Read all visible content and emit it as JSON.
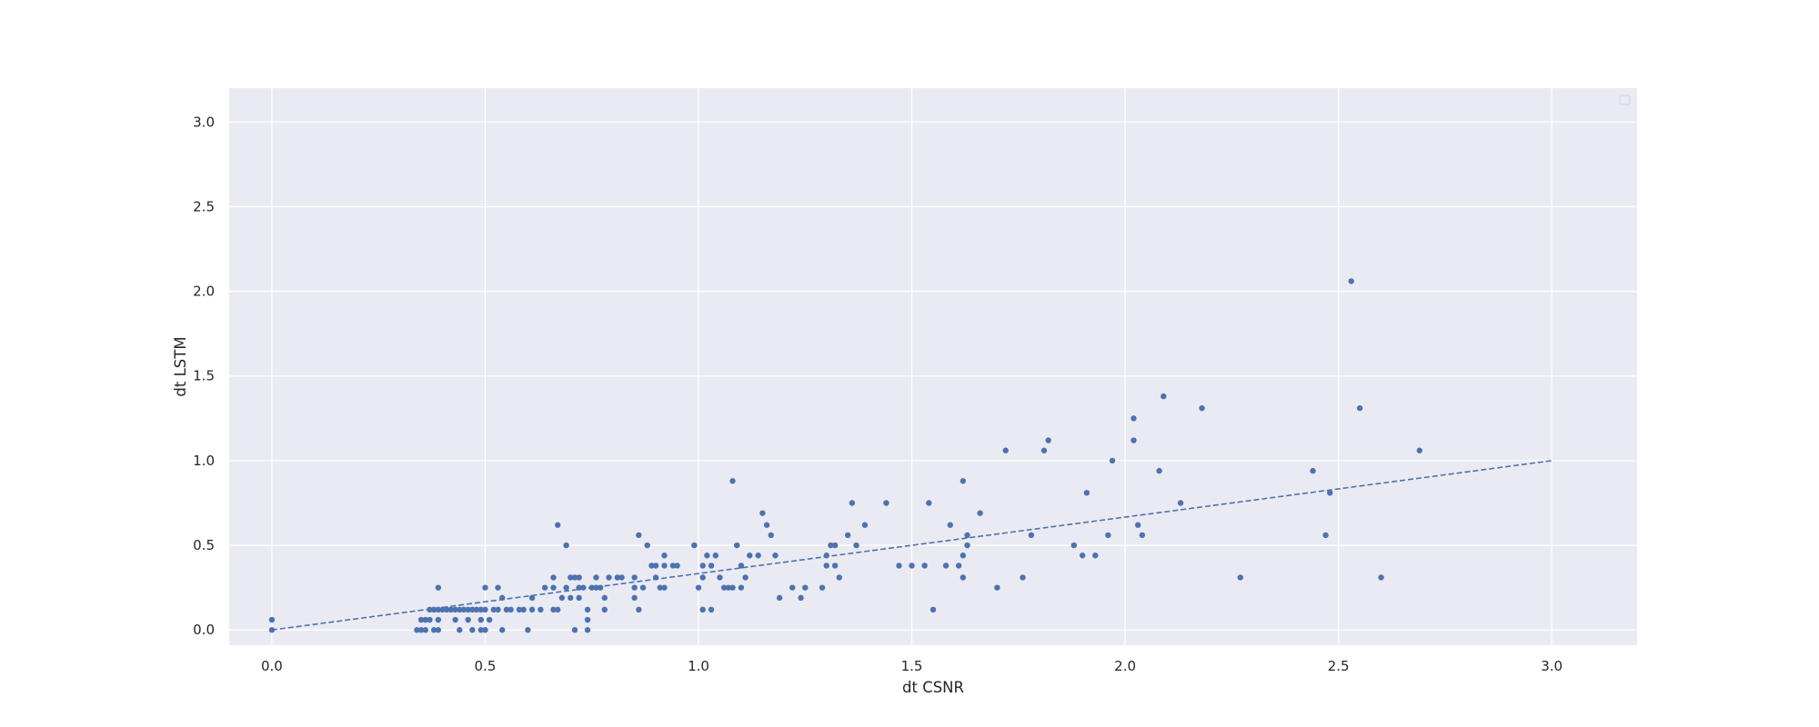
{
  "chart_data": {
    "type": "scatter",
    "title": "",
    "xlabel": "dt CSNR",
    "ylabel": "dt LSTM",
    "xlim": [
      -0.1,
      3.2
    ],
    "ylim": [
      -0.09,
      3.2
    ],
    "xticks": [
      0.0,
      0.5,
      1.0,
      1.5,
      2.0,
      2.5,
      3.0
    ],
    "yticks": [
      0.0,
      0.5,
      1.0,
      1.5,
      2.0,
      2.5,
      3.0
    ],
    "xtick_labels": [
      "0.0",
      "0.5",
      "1.0",
      "1.5",
      "2.0",
      "2.5",
      "3.0"
    ],
    "ytick_labels": [
      "0.0",
      "0.5",
      "1.0",
      "1.5",
      "2.0",
      "2.5",
      "3.0"
    ],
    "grid": true,
    "legend": "top-right (empty)",
    "colors": {
      "points": "#4c72b0",
      "line": "#4c72b0",
      "plot_bg": "#eaeaf2",
      "grid": "#ffffff",
      "text": "#262626"
    },
    "reference_line": {
      "x": [
        0.0,
        3.0
      ],
      "y": [
        0.0,
        1.0
      ],
      "style": "dashed"
    },
    "series": [
      {
        "points": [
          [
            0.0,
            0.0
          ],
          [
            0.0,
            0.06
          ],
          [
            0.34,
            0.0
          ],
          [
            0.35,
            0.0
          ],
          [
            0.36,
            0.0
          ],
          [
            0.38,
            0.0
          ],
          [
            0.39,
            0.0
          ],
          [
            0.35,
            0.06
          ],
          [
            0.36,
            0.06
          ],
          [
            0.37,
            0.06
          ],
          [
            0.39,
            0.06
          ],
          [
            0.37,
            0.12
          ],
          [
            0.38,
            0.12
          ],
          [
            0.39,
            0.12
          ],
          [
            0.4,
            0.12
          ],
          [
            0.41,
            0.12
          ],
          [
            0.42,
            0.12
          ],
          [
            0.43,
            0.12
          ],
          [
            0.44,
            0.12
          ],
          [
            0.45,
            0.12
          ],
          [
            0.46,
            0.12
          ],
          [
            0.47,
            0.12
          ],
          [
            0.48,
            0.12
          ],
          [
            0.49,
            0.12
          ],
          [
            0.5,
            0.12
          ],
          [
            0.39,
            0.25
          ],
          [
            0.43,
            0.06
          ],
          [
            0.44,
            0.0
          ],
          [
            0.46,
            0.06
          ],
          [
            0.47,
            0.0
          ],
          [
            0.49,
            0.0
          ],
          [
            0.5,
            0.0
          ],
          [
            0.49,
            0.06
          ],
          [
            0.51,
            0.06
          ],
          [
            0.5,
            0.25
          ],
          [
            0.52,
            0.12
          ],
          [
            0.53,
            0.12
          ],
          [
            0.53,
            0.25
          ],
          [
            0.54,
            0.0
          ],
          [
            0.54,
            0.19
          ],
          [
            0.55,
            0.12
          ],
          [
            0.56,
            0.12
          ],
          [
            0.58,
            0.12
          ],
          [
            0.59,
            0.12
          ],
          [
            0.6,
            0.0
          ],
          [
            0.61,
            0.12
          ],
          [
            0.61,
            0.19
          ],
          [
            0.63,
            0.12
          ],
          [
            0.64,
            0.25
          ],
          [
            0.66,
            0.12
          ],
          [
            0.66,
            0.25
          ],
          [
            0.66,
            0.31
          ],
          [
            0.67,
            0.12
          ],
          [
            0.67,
            0.62
          ],
          [
            0.68,
            0.19
          ],
          [
            0.69,
            0.25
          ],
          [
            0.69,
            0.5
          ],
          [
            0.7,
            0.31
          ],
          [
            0.7,
            0.19
          ],
          [
            0.71,
            0.31
          ],
          [
            0.71,
            0.0
          ],
          [
            0.72,
            0.19
          ],
          [
            0.72,
            0.31
          ],
          [
            0.72,
            0.25
          ],
          [
            0.73,
            0.25
          ],
          [
            0.74,
            0.12
          ],
          [
            0.74,
            0.06
          ],
          [
            0.74,
            0.0
          ],
          [
            0.75,
            0.25
          ],
          [
            0.76,
            0.25
          ],
          [
            0.76,
            0.31
          ],
          [
            0.77,
            0.25
          ],
          [
            0.78,
            0.19
          ],
          [
            0.78,
            0.12
          ],
          [
            0.79,
            0.31
          ],
          [
            0.81,
            0.31
          ],
          [
            0.82,
            0.31
          ],
          [
            0.85,
            0.31
          ],
          [
            0.85,
            0.25
          ],
          [
            0.85,
            0.19
          ],
          [
            0.86,
            0.12
          ],
          [
            0.86,
            0.56
          ],
          [
            0.87,
            0.25
          ],
          [
            0.88,
            0.5
          ],
          [
            0.89,
            0.38
          ],
          [
            0.9,
            0.31
          ],
          [
            0.9,
            0.38
          ],
          [
            0.91,
            0.25
          ],
          [
            0.92,
            0.25
          ],
          [
            0.92,
            0.38
          ],
          [
            0.92,
            0.44
          ],
          [
            0.94,
            0.38
          ],
          [
            0.95,
            0.38
          ],
          [
            0.99,
            0.5
          ],
          [
            1.0,
            0.25
          ],
          [
            1.01,
            0.31
          ],
          [
            1.01,
            0.38
          ],
          [
            1.01,
            0.12
          ],
          [
            1.02,
            0.44
          ],
          [
            1.03,
            0.12
          ],
          [
            1.03,
            0.38
          ],
          [
            1.04,
            0.44
          ],
          [
            1.05,
            0.31
          ],
          [
            1.06,
            0.25
          ],
          [
            1.07,
            0.25
          ],
          [
            1.08,
            0.25
          ],
          [
            1.08,
            0.88
          ],
          [
            1.09,
            0.5
          ],
          [
            1.1,
            0.38
          ],
          [
            1.1,
            0.25
          ],
          [
            1.11,
            0.31
          ],
          [
            1.12,
            0.44
          ],
          [
            1.14,
            0.44
          ],
          [
            1.15,
            0.69
          ],
          [
            1.16,
            0.62
          ],
          [
            1.17,
            0.56
          ],
          [
            1.18,
            0.44
          ],
          [
            1.19,
            0.19
          ],
          [
            1.22,
            0.25
          ],
          [
            1.24,
            0.19
          ],
          [
            1.25,
            0.25
          ],
          [
            1.29,
            0.25
          ],
          [
            1.3,
            0.44
          ],
          [
            1.3,
            0.38
          ],
          [
            1.31,
            0.5
          ],
          [
            1.32,
            0.5
          ],
          [
            1.32,
            0.38
          ],
          [
            1.33,
            0.31
          ],
          [
            1.35,
            0.56
          ],
          [
            1.36,
            0.75
          ],
          [
            1.37,
            0.5
          ],
          [
            1.39,
            0.62
          ],
          [
            1.44,
            0.75
          ],
          [
            1.47,
            0.38
          ],
          [
            1.5,
            0.38
          ],
          [
            1.53,
            0.38
          ],
          [
            1.54,
            0.75
          ],
          [
            1.55,
            0.12
          ],
          [
            1.58,
            0.38
          ],
          [
            1.59,
            0.62
          ],
          [
            1.61,
            0.38
          ],
          [
            1.62,
            0.88
          ],
          [
            1.62,
            0.31
          ],
          [
            1.62,
            0.44
          ],
          [
            1.63,
            0.5
          ],
          [
            1.63,
            0.56
          ],
          [
            1.66,
            0.69
          ],
          [
            1.7,
            0.25
          ],
          [
            1.72,
            1.06
          ],
          [
            1.76,
            0.31
          ],
          [
            1.78,
            0.56
          ],
          [
            1.81,
            1.06
          ],
          [
            1.82,
            1.12
          ],
          [
            1.88,
            0.5
          ],
          [
            1.9,
            0.44
          ],
          [
            1.91,
            0.81
          ],
          [
            1.93,
            0.44
          ],
          [
            1.96,
            0.56
          ],
          [
            1.97,
            1.0
          ],
          [
            2.02,
            1.12
          ],
          [
            2.02,
            1.25
          ],
          [
            2.03,
            0.62
          ],
          [
            2.04,
            0.56
          ],
          [
            2.08,
            0.94
          ],
          [
            2.09,
            1.38
          ],
          [
            2.13,
            0.75
          ],
          [
            2.18,
            1.31
          ],
          [
            2.27,
            0.31
          ],
          [
            2.44,
            0.94
          ],
          [
            2.47,
            0.56
          ],
          [
            2.48,
            0.81
          ],
          [
            2.53,
            2.06
          ],
          [
            2.55,
            1.31
          ],
          [
            2.6,
            0.31
          ],
          [
            2.69,
            1.06
          ]
        ]
      }
    ]
  }
}
